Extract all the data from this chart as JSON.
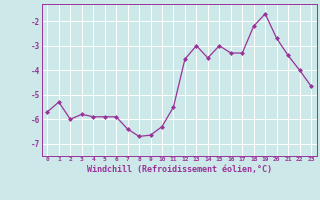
{
  "x": [
    0,
    1,
    2,
    3,
    4,
    5,
    6,
    7,
    8,
    9,
    10,
    11,
    12,
    13,
    14,
    15,
    16,
    17,
    18,
    19,
    20,
    21,
    22,
    23
  ],
  "y": [
    -5.7,
    -5.3,
    -6.0,
    -5.8,
    -5.9,
    -5.9,
    -5.9,
    -6.4,
    -6.7,
    -6.65,
    -6.3,
    -5.5,
    -3.55,
    -3.0,
    -3.5,
    -3.0,
    -3.3,
    -3.3,
    -2.2,
    -1.7,
    -2.7,
    -3.4,
    -4.0,
    -4.65
  ],
  "line_color": "#993399",
  "marker": "D",
  "marker_size": 2.0,
  "linewidth": 0.9,
  "xlabel": "Windchill (Refroidissement éolien,°C)",
  "xlabel_fontsize": 6.0,
  "yticks": [
    -7,
    -6,
    -5,
    -4,
    -3,
    -2
  ],
  "xtick_labels": [
    "0",
    "1",
    "2",
    "3",
    "4",
    "5",
    "6",
    "7",
    "8",
    "9",
    "10",
    "11",
    "12",
    "13",
    "14",
    "15",
    "16",
    "17",
    "18",
    "19",
    "20",
    "21",
    "22",
    "23"
  ],
  "ylim": [
    -7.5,
    -1.3
  ],
  "xlim": [
    -0.5,
    23.5
  ],
  "bg_color": "#cce8e8",
  "grid_color": "#b0d8d8",
  "tick_color": "#993399",
  "label_color": "#993399",
  "spine_color": "#993399"
}
